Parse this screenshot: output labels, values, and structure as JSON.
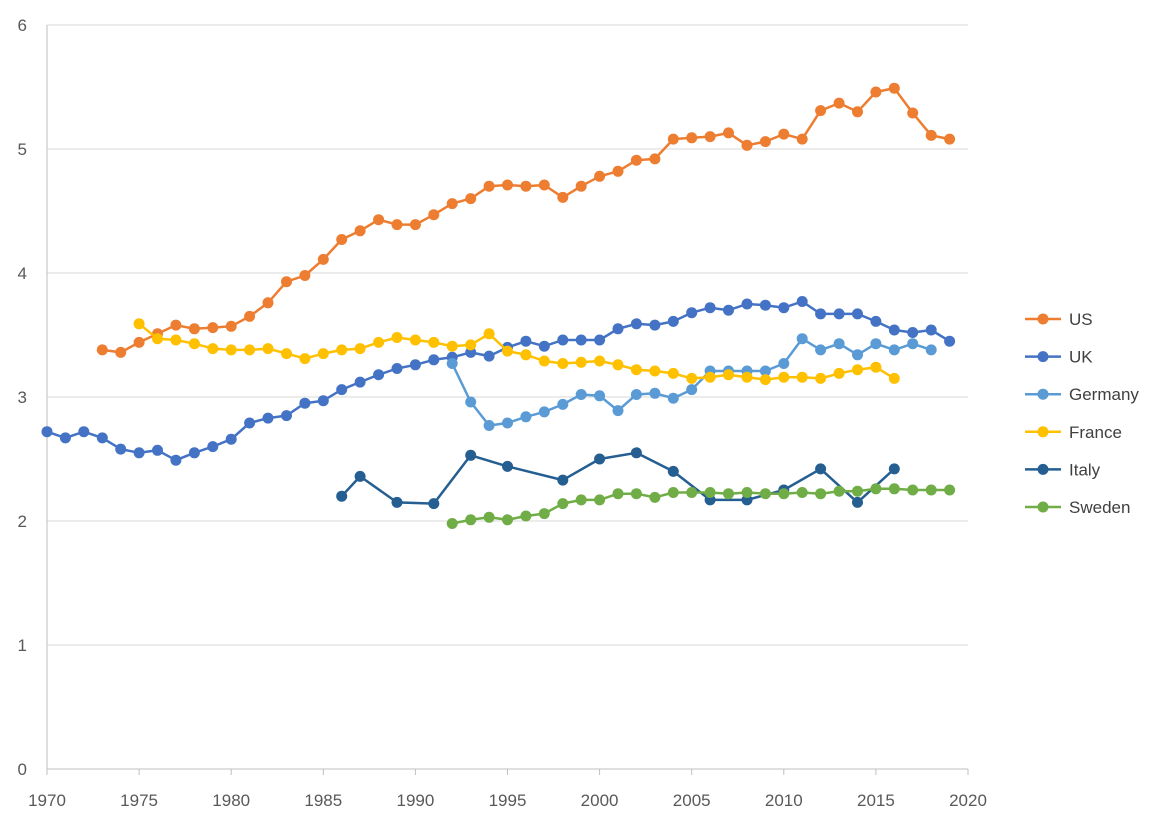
{
  "chart_data": {
    "type": "line",
    "title": "",
    "xlabel": "",
    "ylabel": "",
    "xlim": [
      1970,
      2020
    ],
    "ylim": [
      0,
      6
    ],
    "x_ticks": [
      1970,
      1975,
      1980,
      1985,
      1990,
      1995,
      2000,
      2005,
      2010,
      2015,
      2020
    ],
    "y_ticks": [
      0,
      1,
      2,
      3,
      4,
      5,
      6
    ],
    "grid": "horizontal",
    "legend_position": "right",
    "series": [
      {
        "name": "US",
        "color": "#ED7D31",
        "points": [
          [
            1973,
            3.38
          ],
          [
            1974,
            3.36
          ],
          [
            1975,
            3.44
          ],
          [
            1976,
            3.51
          ],
          [
            1977,
            3.58
          ],
          [
            1978,
            3.55
          ],
          [
            1979,
            3.56
          ],
          [
            1980,
            3.57
          ],
          [
            1981,
            3.65
          ],
          [
            1982,
            3.76
          ],
          [
            1983,
            3.93
          ],
          [
            1984,
            3.98
          ],
          [
            1985,
            4.11
          ],
          [
            1986,
            4.27
          ],
          [
            1987,
            4.34
          ],
          [
            1988,
            4.43
          ],
          [
            1989,
            4.39
          ],
          [
            1990,
            4.39
          ],
          [
            1991,
            4.47
          ],
          [
            1992,
            4.56
          ],
          [
            1993,
            4.6
          ],
          [
            1994,
            4.7
          ],
          [
            1995,
            4.71
          ],
          [
            1996,
            4.7
          ],
          [
            1997,
            4.71
          ],
          [
            1998,
            4.61
          ],
          [
            1999,
            4.7
          ],
          [
            2000,
            4.78
          ],
          [
            2001,
            4.82
          ],
          [
            2002,
            4.91
          ],
          [
            2003,
            4.92
          ],
          [
            2004,
            5.08
          ],
          [
            2005,
            5.09
          ],
          [
            2006,
            5.1
          ],
          [
            2007,
            5.13
          ],
          [
            2008,
            5.03
          ],
          [
            2009,
            5.06
          ],
          [
            2010,
            5.12
          ],
          [
            2011,
            5.08
          ],
          [
            2012,
            5.31
          ],
          [
            2013,
            5.37
          ],
          [
            2014,
            5.3
          ],
          [
            2015,
            5.46
          ],
          [
            2016,
            5.49
          ],
          [
            2017,
            5.29
          ],
          [
            2018,
            5.11
          ],
          [
            2019,
            5.08
          ]
        ]
      },
      {
        "name": "UK",
        "color": "#4472C4",
        "points": [
          [
            1970,
            2.72
          ],
          [
            1971,
            2.67
          ],
          [
            1972,
            2.72
          ],
          [
            1973,
            2.67
          ],
          [
            1974,
            2.58
          ],
          [
            1975,
            2.55
          ],
          [
            1976,
            2.57
          ],
          [
            1977,
            2.49
          ],
          [
            1978,
            2.55
          ],
          [
            1979,
            2.6
          ],
          [
            1980,
            2.66
          ],
          [
            1981,
            2.79
          ],
          [
            1982,
            2.83
          ],
          [
            1983,
            2.85
          ],
          [
            1984,
            2.95
          ],
          [
            1985,
            2.97
          ],
          [
            1986,
            3.06
          ],
          [
            1987,
            3.12
          ],
          [
            1988,
            3.18
          ],
          [
            1989,
            3.23
          ],
          [
            1990,
            3.26
          ],
          [
            1991,
            3.3
          ],
          [
            1992,
            3.32
          ],
          [
            1993,
            3.36
          ],
          [
            1994,
            3.33
          ],
          [
            1995,
            3.4
          ],
          [
            1996,
            3.45
          ],
          [
            1997,
            3.41
          ],
          [
            1998,
            3.46
          ],
          [
            1999,
            3.46
          ],
          [
            2000,
            3.46
          ],
          [
            2001,
            3.55
          ],
          [
            2002,
            3.59
          ],
          [
            2003,
            3.58
          ],
          [
            2004,
            3.61
          ],
          [
            2005,
            3.68
          ],
          [
            2006,
            3.72
          ],
          [
            2007,
            3.7
          ],
          [
            2008,
            3.75
          ],
          [
            2009,
            3.74
          ],
          [
            2010,
            3.72
          ],
          [
            2011,
            3.77
          ],
          [
            2012,
            3.67
          ],
          [
            2013,
            3.67
          ],
          [
            2014,
            3.67
          ],
          [
            2015,
            3.61
          ],
          [
            2016,
            3.54
          ],
          [
            2017,
            3.52
          ],
          [
            2018,
            3.54
          ],
          [
            2019,
            3.45
          ]
        ]
      },
      {
        "name": "Germany",
        "color": "#5B9BD5",
        "points": [
          [
            1992,
            3.27
          ],
          [
            1993,
            2.96
          ],
          [
            1994,
            2.77
          ],
          [
            1995,
            2.79
          ],
          [
            1996,
            2.84
          ],
          [
            1997,
            2.88
          ],
          [
            1998,
            2.94
          ],
          [
            1999,
            3.02
          ],
          [
            2000,
            3.01
          ],
          [
            2001,
            2.89
          ],
          [
            2002,
            3.02
          ],
          [
            2003,
            3.03
          ],
          [
            2004,
            2.99
          ],
          [
            2005,
            3.06
          ],
          [
            2006,
            3.21
          ],
          [
            2007,
            3.21
          ],
          [
            2008,
            3.21
          ],
          [
            2009,
            3.21
          ],
          [
            2010,
            3.27
          ],
          [
            2011,
            3.47
          ],
          [
            2012,
            3.38
          ],
          [
            2013,
            3.43
          ],
          [
            2014,
            3.34
          ],
          [
            2015,
            3.43
          ],
          [
            2016,
            3.38
          ],
          [
            2017,
            3.43
          ],
          [
            2018,
            3.38
          ]
        ]
      },
      {
        "name": "France",
        "color": "#FFC000",
        "points": [
          [
            1975,
            3.59
          ],
          [
            1976,
            3.47
          ],
          [
            1977,
            3.46
          ],
          [
            1978,
            3.43
          ],
          [
            1979,
            3.39
          ],
          [
            1980,
            3.38
          ],
          [
            1981,
            3.38
          ],
          [
            1982,
            3.39
          ],
          [
            1983,
            3.35
          ],
          [
            1984,
            3.31
          ],
          [
            1985,
            3.35
          ],
          [
            1986,
            3.38
          ],
          [
            1987,
            3.39
          ],
          [
            1988,
            3.44
          ],
          [
            1989,
            3.48
          ],
          [
            1990,
            3.46
          ],
          [
            1991,
            3.44
          ],
          [
            1992,
            3.41
          ],
          [
            1993,
            3.42
          ],
          [
            1994,
            3.51
          ],
          [
            1995,
            3.37
          ],
          [
            1996,
            3.34
          ],
          [
            1997,
            3.29
          ],
          [
            1998,
            3.27
          ],
          [
            1999,
            3.28
          ],
          [
            2000,
            3.29
          ],
          [
            2001,
            3.26
          ],
          [
            2002,
            3.22
          ],
          [
            2003,
            3.21
          ],
          [
            2004,
            3.19
          ],
          [
            2005,
            3.15
          ],
          [
            2006,
            3.16
          ],
          [
            2007,
            3.18
          ],
          [
            2008,
            3.16
          ],
          [
            2009,
            3.14
          ],
          [
            2010,
            3.16
          ],
          [
            2011,
            3.16
          ],
          [
            2012,
            3.15
          ],
          [
            2013,
            3.19
          ],
          [
            2014,
            3.22
          ],
          [
            2015,
            3.24
          ],
          [
            2016,
            3.15
          ]
        ]
      },
      {
        "name": "Italy",
        "color": "#255E91",
        "points": [
          [
            1986,
            2.2
          ],
          [
            1987,
            2.36
          ],
          [
            1989,
            2.15
          ],
          [
            1991,
            2.14
          ],
          [
            1993,
            2.53
          ],
          [
            1995,
            2.44
          ],
          [
            1998,
            2.33
          ],
          [
            2000,
            2.5
          ],
          [
            2002,
            2.55
          ],
          [
            2004,
            2.4
          ],
          [
            2006,
            2.17
          ],
          [
            2008,
            2.17
          ],
          [
            2010,
            2.25
          ],
          [
            2012,
            2.42
          ],
          [
            2014,
            2.15
          ],
          [
            2016,
            2.42
          ]
        ]
      },
      {
        "name": "Sweden",
        "color": "#70AD47",
        "points": [
          [
            1992,
            1.98
          ],
          [
            1993,
            2.01
          ],
          [
            1994,
            2.03
          ],
          [
            1995,
            2.01
          ],
          [
            1996,
            2.04
          ],
          [
            1997,
            2.06
          ],
          [
            1998,
            2.14
          ],
          [
            1999,
            2.17
          ],
          [
            2000,
            2.17
          ],
          [
            2001,
            2.22
          ],
          [
            2002,
            2.22
          ],
          [
            2003,
            2.19
          ],
          [
            2004,
            2.23
          ],
          [
            2005,
            2.23
          ],
          [
            2006,
            2.23
          ],
          [
            2007,
            2.22
          ],
          [
            2008,
            2.23
          ],
          [
            2009,
            2.22
          ],
          [
            2010,
            2.22
          ],
          [
            2011,
            2.23
          ],
          [
            2012,
            2.22
          ],
          [
            2013,
            2.24
          ],
          [
            2014,
            2.24
          ],
          [
            2015,
            2.26
          ],
          [
            2016,
            2.26
          ],
          [
            2017,
            2.25
          ],
          [
            2018,
            2.25
          ],
          [
            2019,
            2.25
          ]
        ]
      }
    ]
  }
}
